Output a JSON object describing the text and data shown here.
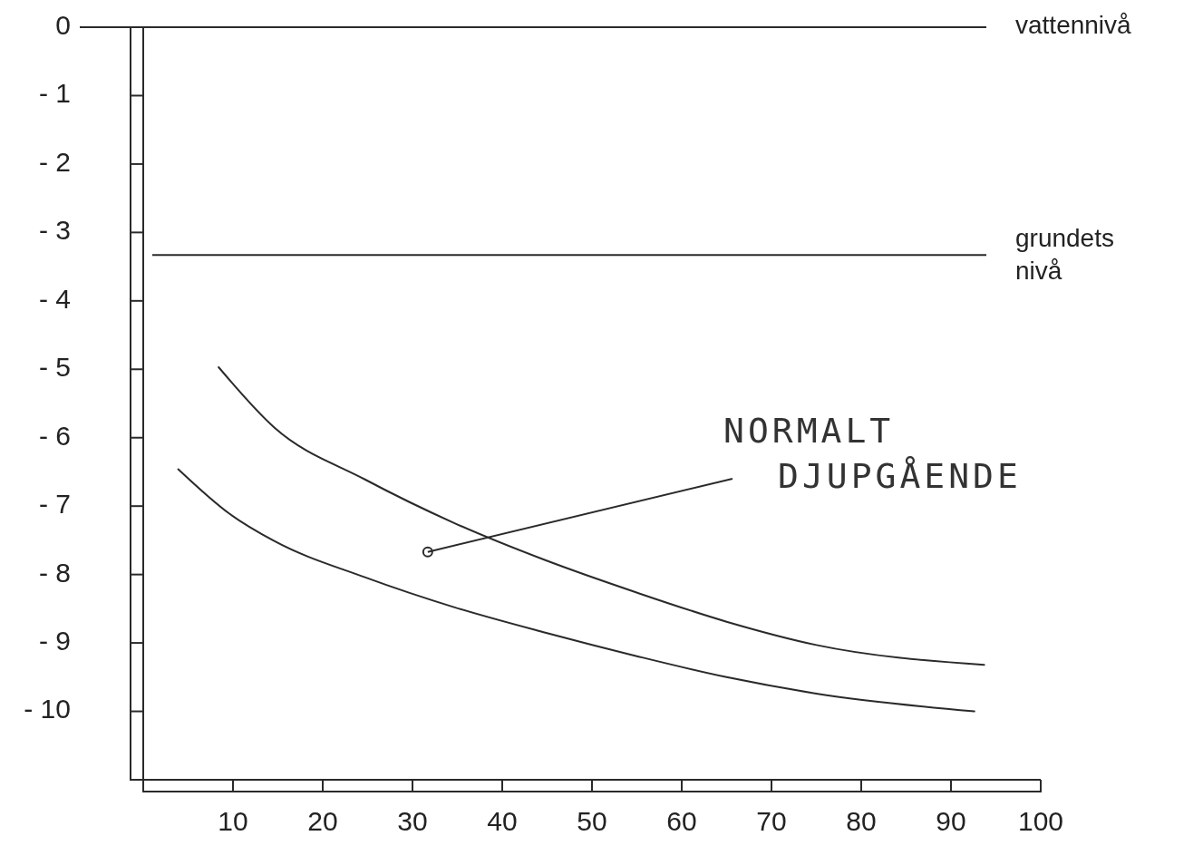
{
  "chart_data": {
    "type": "line",
    "xlim": [
      0,
      100
    ],
    "ylim": [
      -11,
      0
    ],
    "xticks": [
      {
        "value": 0,
        "label": null
      },
      10,
      20,
      30,
      40,
      50,
      60,
      70,
      80,
      90,
      100
    ],
    "yticks": [
      0,
      {
        "value": -1,
        "label": "- 1"
      },
      {
        "value": -2,
        "label": "- 2"
      },
      {
        "value": -3,
        "label": "- 3"
      },
      {
        "value": -4,
        "label": "- 4"
      },
      {
        "value": -5,
        "label": "- 5"
      },
      {
        "value": -6,
        "label": "- 6"
      },
      {
        "value": -7,
        "label": "- 7"
      },
      {
        "value": -8,
        "label": "- 8"
      },
      {
        "value": -9,
        "label": "- 9"
      },
      {
        "value": -10,
        "label": "- 10"
      },
      {
        "value": -11,
        "label": null
      }
    ],
    "marker": "none",
    "line_style": "solid",
    "series": [
      {
        "color": "#2a2a2a",
        "x": [
          8.4,
          14.6,
          24.7,
          34.7,
          44.8,
          54.9,
          65,
          75,
          93.7
        ],
        "values": [
          -4.97,
          -5.85,
          -6.61,
          -7.25,
          -7.79,
          -8.26,
          -8.69,
          -9.03,
          -9.32
        ]
      },
      {
        "color": "#2a2a2a",
        "x": [
          3.9,
          9.6,
          14.6,
          24.7,
          34.7,
          44.8,
          54.9,
          65,
          75,
          92.6
        ],
        "values": [
          -6.46,
          -7.11,
          -7.51,
          -8.04,
          -8.48,
          -8.85,
          -9.19,
          -9.5,
          -9.74,
          -10.0
        ]
      }
    ],
    "ref_lines": [
      {
        "axis": "y",
        "value": 0,
        "label": "vattennivå",
        "color": "#2a2a2a"
      },
      {
        "axis": "y",
        "value": -3.33,
        "label": "grundets nivå",
        "color": "#2a2a2a"
      }
    ],
    "annotations": [
      {
        "text": "NORMALT DJUPGÅENDE",
        "x": 31.7,
        "y": -7.67
      }
    ]
  }
}
